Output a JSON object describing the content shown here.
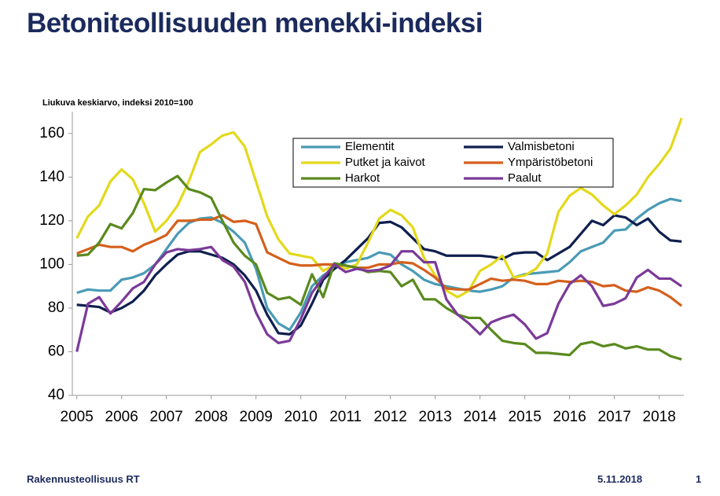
{
  "header": {
    "title": "Betoniteollisuuden menekki-indeksi"
  },
  "footer": {
    "source": "Rakennusteollisuus RT",
    "date": "5.11.2018",
    "page": "1"
  },
  "chart_data": {
    "type": "line",
    "subtitle": "Liukuva keskiarvo, indeksi 2010=100",
    "x": [
      2005,
      2005.25,
      2005.5,
      2005.75,
      2006,
      2006.25,
      2006.5,
      2006.75,
      2007,
      2007.25,
      2007.5,
      2007.75,
      2008,
      2008.25,
      2008.5,
      2008.75,
      2009,
      2009.25,
      2009.5,
      2009.75,
      2010,
      2010.25,
      2010.5,
      2010.75,
      2011,
      2011.25,
      2011.5,
      2011.75,
      2012,
      2012.25,
      2012.5,
      2012.75,
      2013,
      2013.25,
      2013.5,
      2013.75,
      2014,
      2014.25,
      2014.5,
      2014.75,
      2015,
      2015.25,
      2015.5,
      2015.75,
      2016,
      2016.25,
      2016.5,
      2016.75,
      2017,
      2017.25,
      2017.5,
      2017.75,
      2018,
      2018.25,
      2018.5
    ],
    "xlim": [
      2004.9,
      2018.55
    ],
    "xticks": [
      2005,
      2006,
      2007,
      2008,
      2009,
      2010,
      2011,
      2012,
      2013,
      2014,
      2015,
      2016,
      2017,
      2018
    ],
    "ylim": [
      40,
      170
    ],
    "yticks": [
      40,
      60,
      80,
      100,
      120,
      140,
      160
    ],
    "series": [
      {
        "name": "Elementit",
        "color": "#4a9bb5",
        "values": [
          87,
          88.5,
          88,
          88,
          93,
          94,
          96,
          100,
          107,
          114,
          119,
          121,
          121.5,
          119,
          115,
          110,
          98,
          80,
          73,
          70,
          78,
          90,
          95,
          98,
          101,
          102,
          103,
          105.5,
          104.5,
          100,
          97,
          93,
          91,
          90,
          89,
          88,
          87.5,
          88.5,
          90,
          94,
          95.5,
          96,
          96.5,
          97,
          101,
          106,
          108,
          110,
          115.5,
          116,
          121,
          125,
          128,
          130,
          129
        ]
      },
      {
        "name": "Valmisbetoni",
        "color": "#0f1f4f",
        "values": [
          81.5,
          81,
          80.5,
          78,
          80,
          83,
          88,
          95,
          100,
          104.5,
          106,
          106,
          104.5,
          103,
          100,
          95,
          88,
          77,
          68.5,
          68,
          72,
          82,
          93,
          98,
          102,
          107,
          112,
          119,
          119.5,
          117,
          112,
          107,
          106,
          104,
          104,
          104,
          104,
          103.5,
          102.5,
          105,
          105.5,
          105.5,
          102,
          105,
          108,
          114,
          120,
          118,
          122.5,
          121.5,
          118,
          121,
          115,
          111,
          110.5
        ]
      },
      {
        "name": "Putket ja kaivot",
        "color": "#e3d91a",
        "values": [
          112,
          122,
          127,
          138,
          143.5,
          139,
          128,
          115,
          120,
          127,
          138,
          151.5,
          155,
          159,
          160.5,
          154,
          138,
          122,
          111.5,
          105,
          104,
          103,
          97,
          100,
          98,
          100,
          110,
          121,
          125,
          122.5,
          117,
          103,
          95,
          88,
          85,
          88,
          97,
          100,
          104,
          94,
          95,
          98,
          105,
          124,
          131.5,
          135,
          132,
          127,
          123,
          127,
          132,
          140,
          146,
          153,
          167
        ]
      },
      {
        "name": "Ympäristöbetoni",
        "color": "#d4601c",
        "values": [
          105,
          107,
          109,
          108,
          108,
          106,
          109,
          111,
          113.5,
          120,
          120,
          120.5,
          120.5,
          122.5,
          119.5,
          120,
          118.5,
          105.5,
          103,
          100.5,
          99.5,
          99.5,
          100,
          100,
          99.5,
          98.5,
          98.5,
          100,
          100,
          101,
          100.5,
          97.5,
          94,
          89,
          88.5,
          88.5,
          91,
          93.5,
          92.5,
          93,
          92.5,
          91,
          91,
          92.5,
          92,
          92.5,
          92,
          90,
          90.5,
          88,
          87.5,
          89.5,
          88,
          85,
          81
        ]
      },
      {
        "name": "Harkot",
        "color": "#5a8a1e",
        "values": [
          104,
          104.5,
          110,
          118.5,
          116.5,
          123.5,
          134.5,
          134,
          137.5,
          140.5,
          134.5,
          133,
          130.5,
          120,
          110,
          104,
          100,
          87,
          84,
          85,
          81.5,
          95.5,
          85,
          100.5,
          99.5,
          98.5,
          96.5,
          97,
          96.5,
          90,
          93,
          84,
          84,
          80,
          77,
          75.5,
          75.5,
          70,
          65,
          64,
          63.5,
          59.5,
          59.5,
          59,
          58.5,
          63.5,
          64.5,
          62.5,
          63.5,
          61.5,
          62.5,
          61,
          61,
          58,
          56.5
        ]
      },
      {
        "name": "Paalut",
        "color": "#7b3a98",
        "values": [
          60,
          82,
          85,
          77.5,
          83,
          89,
          92,
          100,
          105.5,
          107,
          106.5,
          107,
          108,
          102,
          99,
          92,
          78,
          68,
          64,
          65,
          75,
          87,
          94,
          100,
          96.5,
          98,
          97,
          97.5,
          99.5,
          106,
          106,
          101,
          101,
          84,
          77,
          73,
          68,
          73.5,
          75.5,
          77,
          72.5,
          66,
          68.5,
          82,
          91,
          95,
          90,
          81,
          82,
          84.5,
          94,
          97.5,
          93.5,
          93.5,
          90
        ]
      }
    ]
  }
}
